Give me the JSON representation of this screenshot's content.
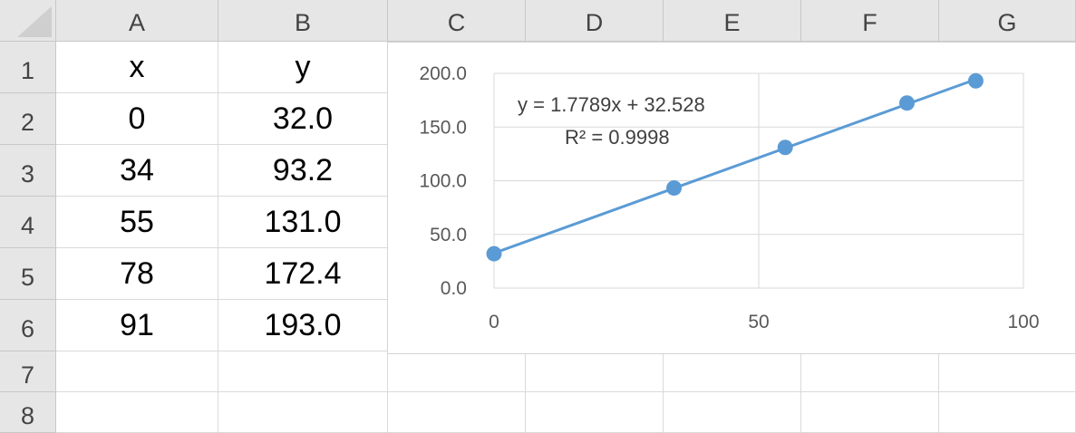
{
  "columns": [
    "A",
    "B",
    "C",
    "D",
    "E",
    "F",
    "G"
  ],
  "rows": [
    "1",
    "2",
    "3",
    "4",
    "5",
    "6",
    "7",
    "8"
  ],
  "headers": {
    "x": "x",
    "y": "y"
  },
  "table": [
    {
      "x": "0",
      "y": "32.0"
    },
    {
      "x": "34",
      "y": "93.2"
    },
    {
      "x": "55",
      "y": "131.0"
    },
    {
      "x": "78",
      "y": "172.4"
    },
    {
      "x": "91",
      "y": "193.0"
    }
  ],
  "chart_data": {
    "type": "scatter",
    "x": [
      0,
      34,
      55,
      78,
      91
    ],
    "y": [
      32.0,
      93.2,
      131.0,
      172.4,
      193.0
    ],
    "xlim": [
      0,
      100
    ],
    "ylim": [
      0,
      200
    ],
    "x_ticks": [
      "0",
      "50",
      "100"
    ],
    "y_ticks": [
      "0.0",
      "50.0",
      "100.0",
      "150.0",
      "200.0"
    ],
    "trendline": {
      "slope": 1.7789,
      "intercept": 32.528
    },
    "equation": "y = 1.7789x + 32.528",
    "r_squared": "R² = 0.9998",
    "grid": true,
    "series_color": "#5b9bd5"
  }
}
